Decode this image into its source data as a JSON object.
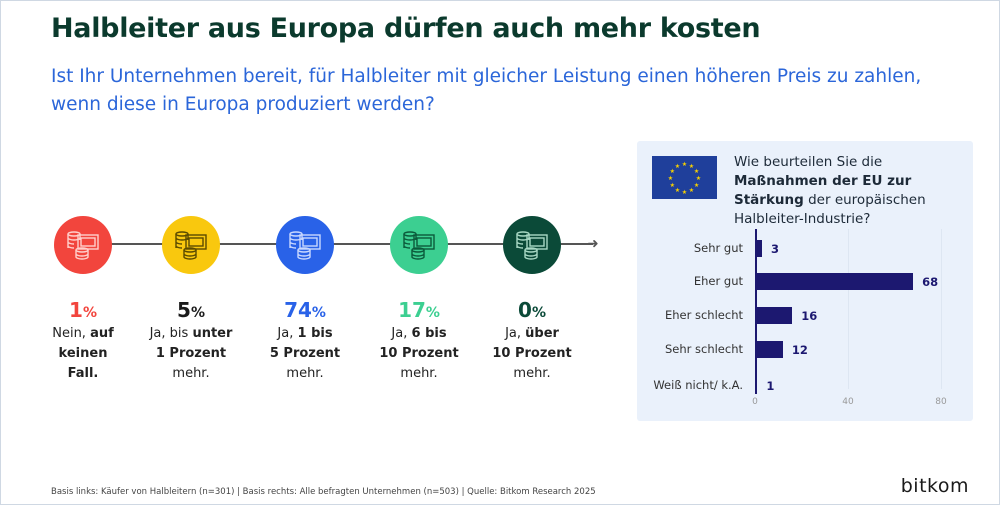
{
  "title": "Halbleiter aus Europa dürfen auch mehr kosten",
  "subtitle": "Ist Ihr Unternehmen bereit, für Halbleiter mit gleicher Leistung einen höheren Preis zu zahlen, wenn diese in Europa produziert werden?",
  "left_items": [
    {
      "value": "1",
      "unit": "%",
      "color": "#f2453d",
      "icon_color": "#ffd0cc",
      "lines": [
        [
          {
            "t": "Nein, "
          },
          {
            "t": "auf",
            "b": true
          }
        ],
        [
          {
            "t": "keinen",
            "b": true
          }
        ],
        [
          {
            "t": "Fall.",
            "b": true
          }
        ]
      ]
    },
    {
      "value": "5",
      "unit": "%",
      "color": "#f9c80e",
      "icon_color": "#5a4a00",
      "lines": [
        [
          {
            "t": "Ja, bis "
          },
          {
            "t": "unter",
            "b": true
          }
        ],
        [
          {
            "t": "1 Prozent",
            "b": true
          }
        ],
        [
          {
            "t": "mehr."
          }
        ]
      ]
    },
    {
      "value": "74",
      "unit": "%",
      "color": "#2962e8",
      "icon_color": "#c9d8ff",
      "lines": [
        [
          {
            "t": "Ja, "
          },
          {
            "t": "1 bis",
            "b": true
          }
        ],
        [
          {
            "t": "5 Prozent",
            "b": true
          }
        ],
        [
          {
            "t": "mehr."
          }
        ]
      ]
    },
    {
      "value": "17",
      "unit": "%",
      "color": "#3ccf91",
      "icon_color": "#0b5a3b",
      "lines": [
        [
          {
            "t": "Ja, "
          },
          {
            "t": "6 bis",
            "b": true
          }
        ],
        [
          {
            "t": "10 Prozent",
            "b": true
          }
        ],
        [
          {
            "t": "mehr."
          }
        ]
      ]
    },
    {
      "value": "0",
      "unit": "%",
      "color": "#0b4a38",
      "icon_color": "#a8d8c4",
      "lines": [
        [
          {
            "t": "Ja, "
          },
          {
            "t": "über",
            "b": true
          }
        ],
        [
          {
            "t": "10 Prozent",
            "b": true
          }
        ],
        [
          {
            "t": "mehr."
          }
        ]
      ]
    }
  ],
  "chart_data": {
    "type": "bar",
    "orientation": "horizontal",
    "title_parts": [
      {
        "t": "Wie beurteilen Sie die "
      },
      {
        "t": "Maßnahmen der EU zur Stärkung",
        "b": true
      },
      {
        "t": " der europäischen Halbleiter-Industrie?"
      }
    ],
    "categories": [
      "Sehr gut",
      "Eher gut",
      "Eher schlecht",
      "Sehr schlecht",
      "Weiß nicht/ k.A."
    ],
    "values": [
      3,
      68,
      16,
      12,
      1
    ],
    "xlim": [
      0,
      80
    ],
    "xticks": [
      "0",
      "40",
      "80"
    ],
    "bar_color": "#1c1870",
    "grid": true
  },
  "footer": "Basis links: Käufer von Halbleitern (n=301) | Basis rechts: Alle befragten Unternehmen (n=503) | Quelle: Bitkom Research 2025",
  "logo": "bitkom"
}
